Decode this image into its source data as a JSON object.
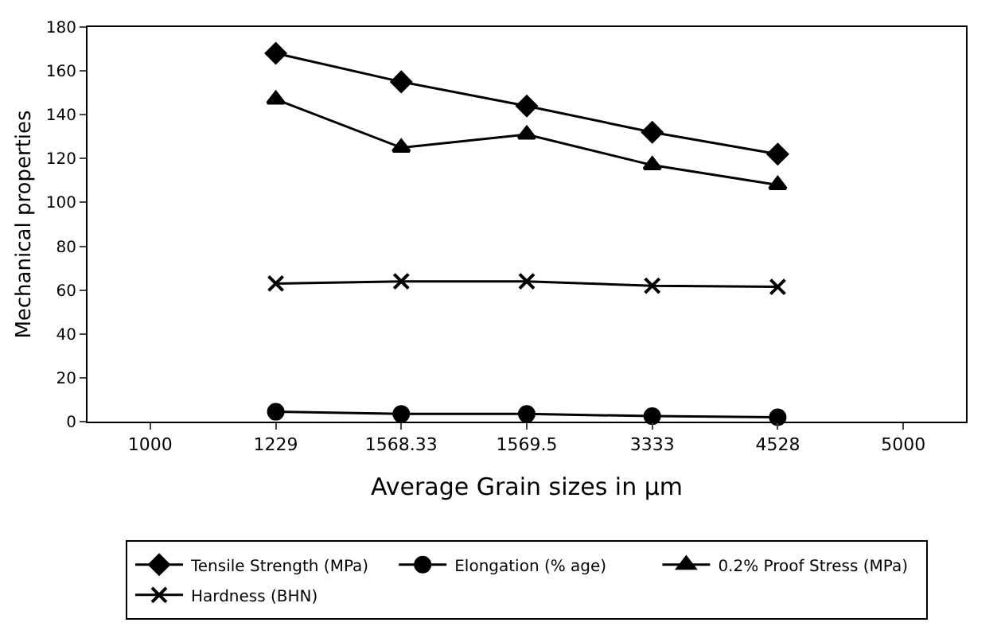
{
  "chart_data": {
    "type": "line",
    "xlabel": "Average Grain sizes in µm",
    "ylabel": "Mechanical properties",
    "categories": [
      "1000",
      "1229",
      "1568.33",
      "1569.5",
      "3333",
      "4528",
      "5000"
    ],
    "series": [
      {
        "name": "Tensile Strength (MPa)",
        "color": "#000000",
        "marker": "diamond",
        "values": [
          null,
          168,
          155,
          144,
          132,
          122,
          null
        ]
      },
      {
        "name": "Elongation (% age)",
        "color": "#000000",
        "marker": "circle",
        "values": [
          null,
          4.5,
          3.5,
          3.5,
          2.5,
          2,
          null
        ]
      },
      {
        "name": "0.2% Proof Stress (MPa)",
        "color": "#000000",
        "marker": "triangle",
        "values": [
          null,
          147,
          125,
          131,
          117,
          108,
          null
        ]
      },
      {
        "name": "Hardness (BHN)",
        "color": "#000000",
        "marker": "cross",
        "values": [
          null,
          63,
          64,
          64,
          62,
          61.5,
          null
        ]
      }
    ],
    "ylim": [
      0,
      180
    ],
    "yticks": [
      0,
      20,
      40,
      60,
      80,
      100,
      120,
      140,
      160,
      180
    ],
    "grid": false,
    "legend": "bottom",
    "line_style": "solid"
  }
}
